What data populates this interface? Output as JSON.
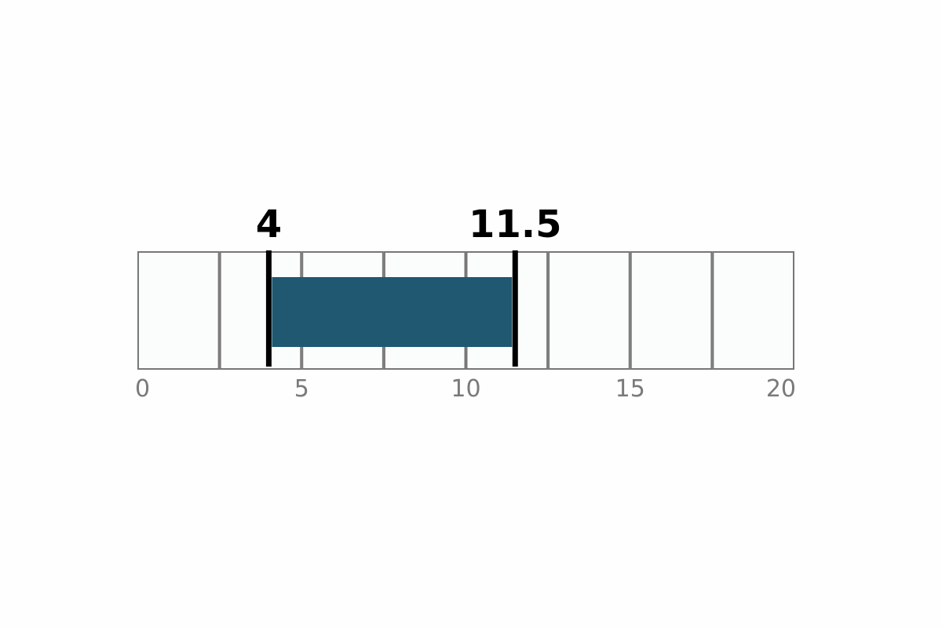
{
  "chart_data": {
    "type": "range",
    "xlim": [
      0,
      20
    ],
    "tick_values": [
      0,
      5,
      10,
      15,
      20
    ],
    "tick_labels": [
      "0",
      "5",
      "10",
      "15",
      "20"
    ],
    "cell_step": 2.5,
    "range": {
      "start": 4,
      "end": 11.5
    },
    "marker_labels": [
      "4",
      "11.5"
    ],
    "grid": true,
    "colors": {
      "range_fill": "#1f5870",
      "cell_fill": "#fbfdfc",
      "cell_stroke": "#777777",
      "marker": "#000000",
      "tick_label": "#7a7a7a"
    }
  }
}
